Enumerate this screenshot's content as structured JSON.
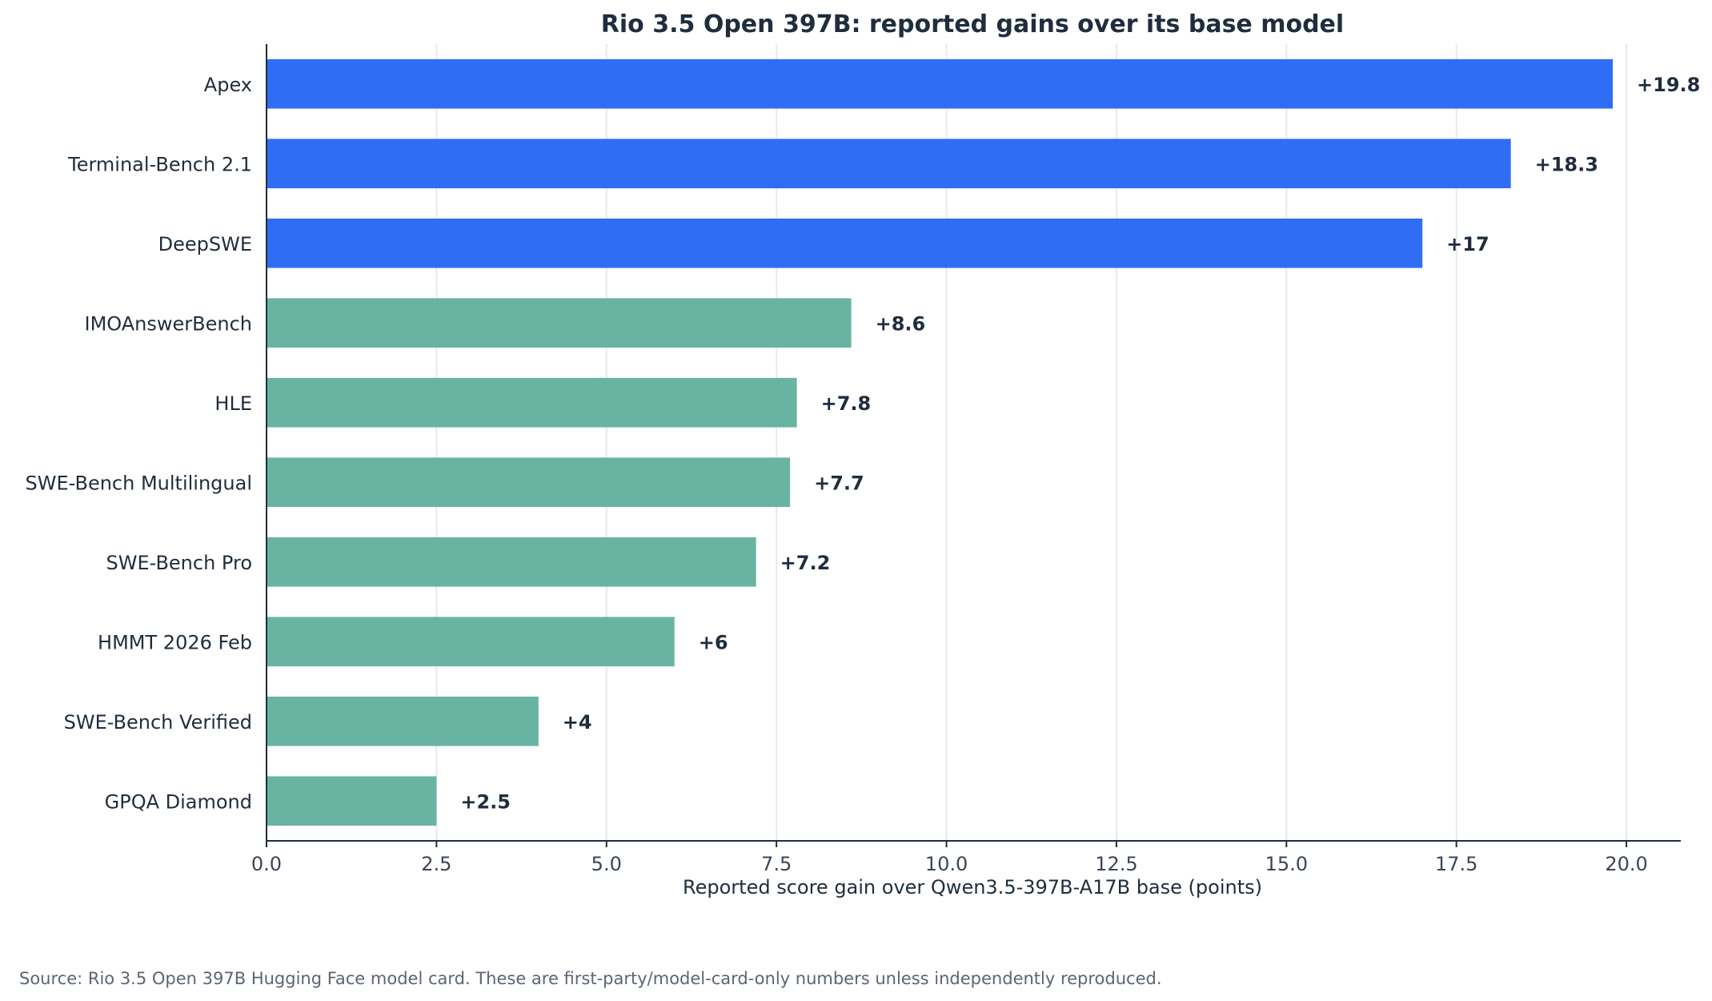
{
  "chart_data": {
    "type": "bar",
    "orientation": "horizontal",
    "title": "Rio 3.5 Open 397B: reported gains over its base model",
    "xlabel": "Reported score gain over Qwen3.5-397B-A17B base (points)",
    "ylabel": "",
    "xlim": [
      0,
      20.8
    ],
    "xticks": [
      "0.0",
      "2.5",
      "5.0",
      "7.5",
      "10.0",
      "12.5",
      "15.0",
      "17.5",
      "20.0"
    ],
    "xtick_values": [
      0,
      2.5,
      5,
      7.5,
      10,
      12.5,
      15,
      17.5,
      20
    ],
    "grid": "vertical",
    "categories": [
      "Apex",
      "Terminal-Bench 2.1",
      "DeepSWE",
      "IMOAnswerBench",
      "HLE",
      "SWE-Bench Multilingual",
      "SWE-Bench Pro",
      "HMMT 2026 Feb",
      "SWE-Bench Verified",
      "GPQA Diamond"
    ],
    "values": [
      19.8,
      18.3,
      17,
      8.6,
      7.8,
      7.7,
      7.2,
      6,
      4,
      2.5
    ],
    "data_labels": [
      "+19.8",
      "+18.3",
      "+17",
      "+8.6",
      "+7.8",
      "+7.7",
      "+7.2",
      "+6",
      "+4",
      "+2.5"
    ],
    "bar_colors": [
      "#306df5",
      "#306df5",
      "#306df5",
      "#69b3a2",
      "#69b3a2",
      "#69b3a2",
      "#69b3a2",
      "#69b3a2",
      "#69b3a2",
      "#69b3a2"
    ],
    "source_note": "Source: Rio 3.5 Open 397B Hugging Face model card. These are first-party/model-card-only numbers unless independently reproduced."
  },
  "colors": {
    "highlight": "#306df5",
    "default": "#69b3a2",
    "grid": "#e6e9f0",
    "text": "#1f2d3d"
  }
}
